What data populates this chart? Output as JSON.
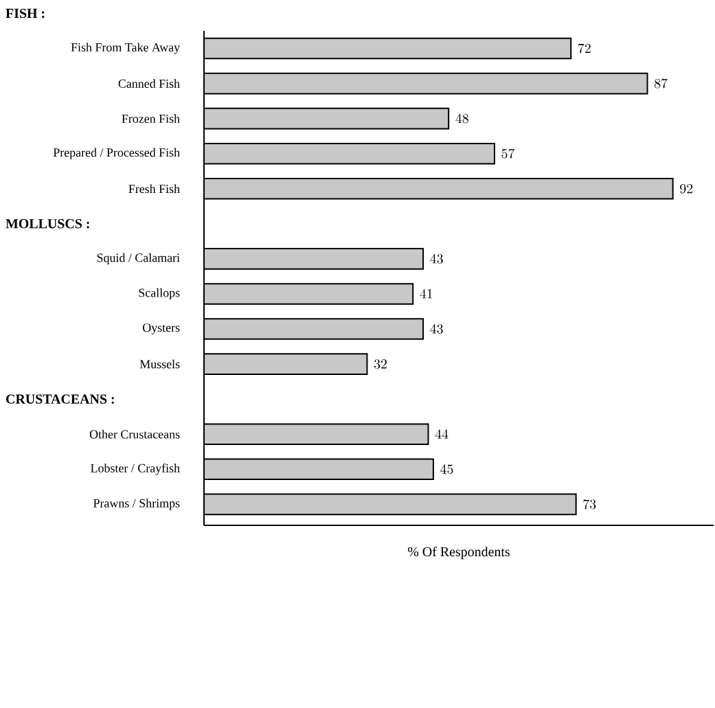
{
  "chart_data": {
    "type": "bar",
    "orientation": "horizontal",
    "categories": [
      null,
      "Fish From Take Away",
      "Canned Fish",
      "Frozen Fish",
      "Prepared / Processed Fish",
      "Fresh Fish",
      null,
      "Squid / Calamari",
      "Scallops",
      "Oysters",
      "Mussels",
      null,
      "Other Crustaceans",
      "Lobster / Crayfish",
      "Prawns / Shrimps"
    ],
    "annotations": [
      "FISH :",
      "MOLLUSCS :",
      "CRUSTACEANS :"
    ],
    "values": [
      null,
      72,
      87,
      48,
      57,
      92,
      null,
      43,
      41,
      43,
      32,
      null,
      44,
      45,
      73
    ],
    "color": "#c8c8c8",
    "xlim": [
      0,
      100
    ],
    "data_labels": true,
    "xlabel": "% Of Respondents"
  }
}
